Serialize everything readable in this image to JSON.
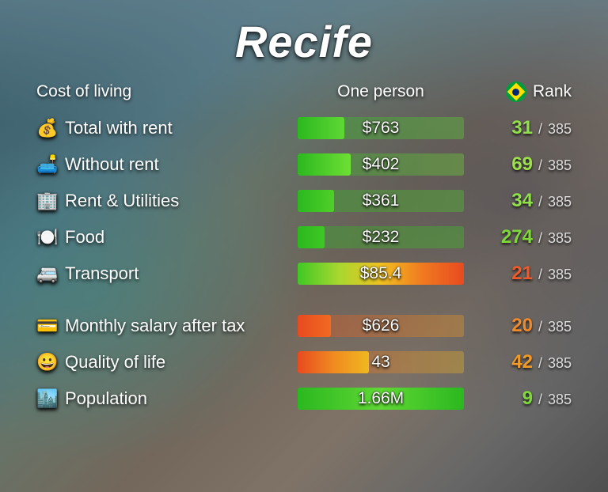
{
  "title": "Recife",
  "headers": {
    "category": "Cost of living",
    "value": "One person",
    "rank": "Rank"
  },
  "flag_icon": "brazil-flag",
  "rank_total": "385",
  "rank_separator": "/",
  "text_color": "#ffffff",
  "shadow_color": "rgba(0,0,0,0.8)",
  "groups": [
    {
      "rows": [
        {
          "icon": "💰",
          "icon_name": "money-bag-icon",
          "label": "Total with rent",
          "value": "$763",
          "bar_fill_pct": 28,
          "bar_gradient": [
            "#2bb81f",
            "#5fd834"
          ],
          "track_gradient": [
            "#2bb81f",
            "#5fd834"
          ],
          "track_opacity": 0.35,
          "rank": "31",
          "rank_color": "#8fe04a"
        },
        {
          "icon": "🛋️",
          "icon_name": "couch-icon",
          "label": "Without rent",
          "value": "$402",
          "bar_fill_pct": 32,
          "bar_gradient": [
            "#2bb81f",
            "#6fe034"
          ],
          "track_gradient": [
            "#2bb81f",
            "#6fe034"
          ],
          "track_opacity": 0.35,
          "rank": "69",
          "rank_color": "#9be04a"
        },
        {
          "icon": "🏢",
          "icon_name": "building-icon",
          "label": "Rent & Utilities",
          "value": "$361",
          "bar_fill_pct": 22,
          "bar_gradient": [
            "#2bb81f",
            "#4fd028"
          ],
          "track_gradient": [
            "#2bb81f",
            "#4fd028"
          ],
          "track_opacity": 0.35,
          "rank": "34",
          "rank_color": "#8fe04a"
        },
        {
          "icon": "🍽️",
          "icon_name": "food-icon",
          "label": "Food",
          "value": "$232",
          "bar_fill_pct": 16,
          "bar_gradient": [
            "#2bb81f",
            "#3fc824"
          ],
          "track_gradient": [
            "#2bb81f",
            "#3fc824"
          ],
          "track_opacity": 0.35,
          "rank": "274",
          "rank_color": "#7fd83a"
        },
        {
          "icon": "🚐",
          "icon_name": "transport-icon",
          "label": "Transport",
          "value": "$85.4",
          "bar_fill_pct": 100,
          "bar_gradient": [
            "#3fc824",
            "#a8d830",
            "#f0c020",
            "#f07a20",
            "#e84a20"
          ],
          "track_gradient": [
            "#3fc824",
            "#e84a20"
          ],
          "track_opacity": 0.0,
          "rank": "21",
          "rank_color": "#f05a2a"
        }
      ]
    },
    {
      "rows": [
        {
          "icon": "💳",
          "icon_name": "credit-card-icon",
          "label": "Monthly salary after tax",
          "value": "$626",
          "bar_fill_pct": 20,
          "bar_gradient": [
            "#e84a20",
            "#f06a20"
          ],
          "track_gradient": [
            "#e84a20",
            "#f09a20"
          ],
          "track_opacity": 0.35,
          "rank": "20",
          "rank_color": "#f08a2a"
        },
        {
          "icon": "😀",
          "icon_name": "smile-icon",
          "label": "Quality of life",
          "value": "43",
          "bar_fill_pct": 43,
          "bar_gradient": [
            "#e84a20",
            "#f08a20",
            "#f0b820"
          ],
          "track_gradient": [
            "#e84a20",
            "#f0b820"
          ],
          "track_opacity": 0.35,
          "rank": "42",
          "rank_color": "#f09a2a"
        },
        {
          "icon": "🏙️",
          "icon_name": "city-icon",
          "label": "Population",
          "value": "1.66M",
          "bar_fill_pct": 100,
          "bar_gradient": [
            "#2bb81f",
            "#5fd834",
            "#2bb81f"
          ],
          "track_gradient": [
            "#2bb81f",
            "#5fd834"
          ],
          "track_opacity": 0.0,
          "rank": "9",
          "rank_color": "#7fd83a"
        }
      ]
    }
  ]
}
